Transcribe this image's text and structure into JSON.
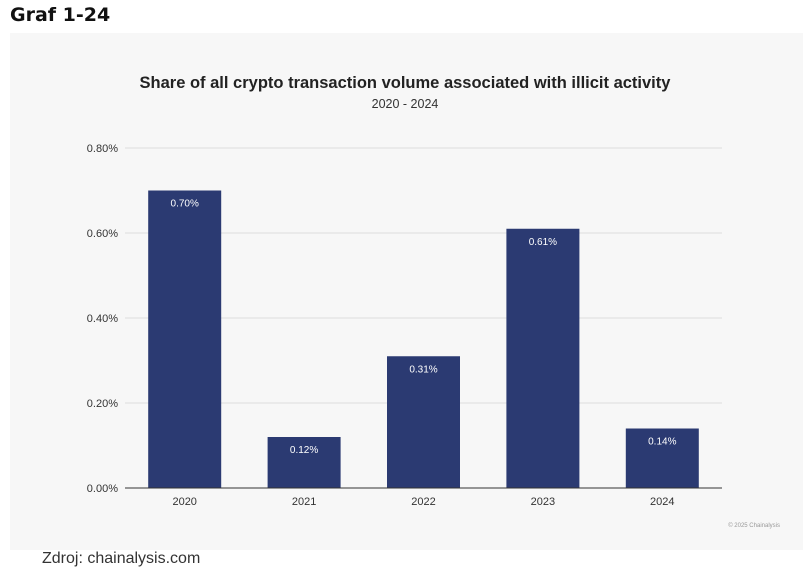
{
  "header": {
    "graf_label": "Graf 1-24"
  },
  "footer": {
    "source": "Zdroj: chainalysis.com",
    "copyright": "© 2025 Chainalysis"
  },
  "chart_data": {
    "type": "bar",
    "title": "Share of all crypto transaction volume associated with illicit activity",
    "subtitle": "2020 - 2024",
    "xlabel": "",
    "ylabel": "",
    "categories": [
      "2020",
      "2021",
      "2022",
      "2023",
      "2024"
    ],
    "values": [
      0.7,
      0.12,
      0.31,
      0.61,
      0.14
    ],
    "value_labels": [
      "0.70%",
      "0.12%",
      "0.31%",
      "0.61%",
      "0.14%"
    ],
    "ylim": [
      0,
      0.8
    ],
    "yticks": [
      0,
      0.2,
      0.4,
      0.6,
      0.8
    ],
    "ytick_labels": [
      "0.00%",
      "0.20%",
      "0.40%",
      "0.60%",
      "0.80%"
    ],
    "grid": true,
    "bar_color": "#2b3a72",
    "legend": "none"
  }
}
